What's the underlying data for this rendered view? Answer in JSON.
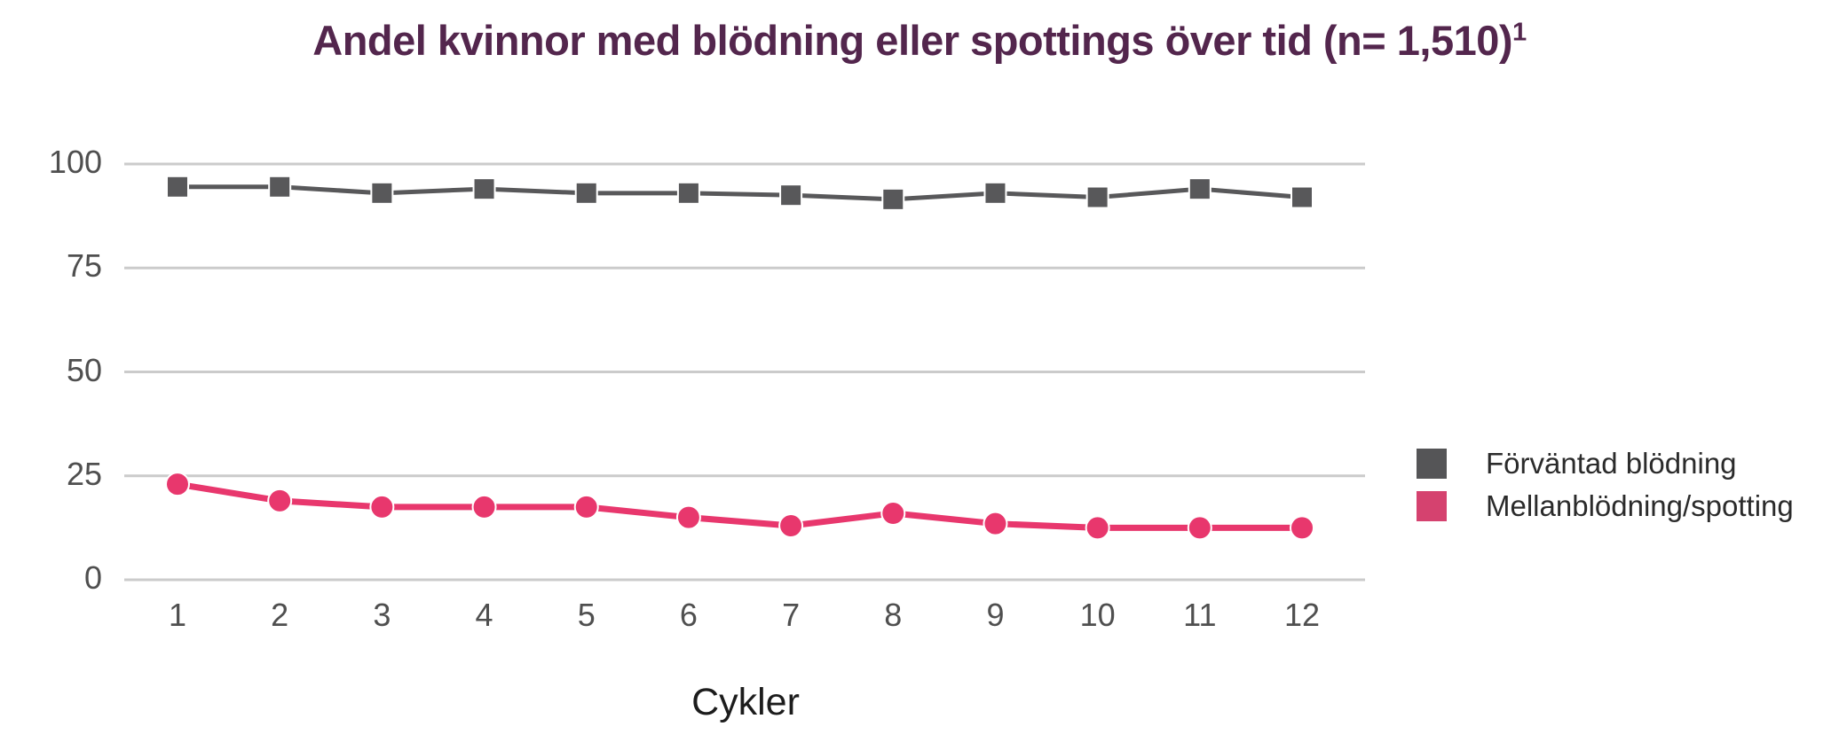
{
  "title": {
    "text": "Andel kvinnor med blödning eller spottings över tid (n= 1,510)",
    "superscript": "1"
  },
  "chart_data": {
    "type": "line",
    "categories": [
      "1",
      "2",
      "3",
      "4",
      "5",
      "6",
      "7",
      "8",
      "9",
      "10",
      "11",
      "12"
    ],
    "series": [
      {
        "name": "Förväntad blödning",
        "marker": "square",
        "color": "#58585a",
        "legend_color": "#555557",
        "values": [
          94.5,
          94.5,
          93,
          94,
          93,
          93,
          92.5,
          91.5,
          93,
          92,
          94,
          92
        ]
      },
      {
        "name": "Mellanblödning/spotting",
        "marker": "circle",
        "color": "#e8376d",
        "legend_color": "#d5426f",
        "values": [
          23,
          19,
          17.5,
          17.5,
          17.5,
          15,
          13,
          16,
          13.5,
          12.5,
          12.5,
          12.5
        ]
      }
    ],
    "xlabel": "Cykler",
    "ylabel": "",
    "ylim": [
      0,
      100
    ],
    "yticks": [
      0,
      25,
      50,
      75,
      100
    ],
    "grid": "horizontal",
    "gridline_color": "#cbcbcb",
    "legend_position": "right"
  }
}
